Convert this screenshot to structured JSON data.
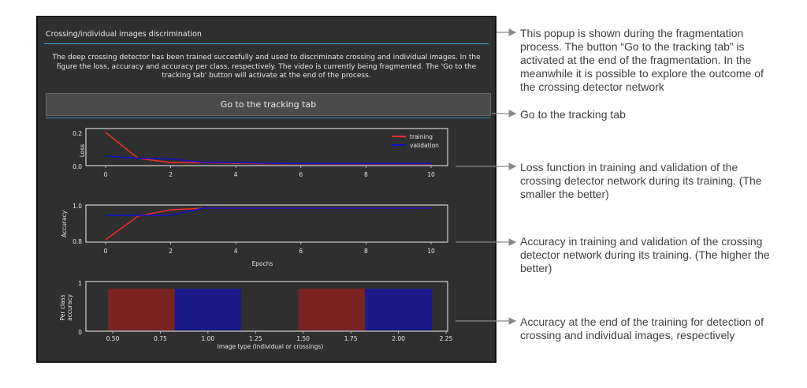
{
  "popup": {
    "title": "Crossing/individual images discrimination",
    "description": "The deep crossing detector has been trained succesfully and used to discriminate crossing and individual images. In the figure the loss, accuracy and accuracy per class, respectively. The video is currently being fragmented. The 'Go to the tracking tab' button will activate at the end of the process.",
    "button_label": "Go to the tracking tab"
  },
  "colors": {
    "training": "#e8322a",
    "validation": "#1010c8",
    "bar_training": "#7a2323",
    "bar_validation": "#1a1a8a",
    "accent": "#3ea6d8"
  },
  "chart_data": [
    {
      "type": "line",
      "ylabel": "Loss",
      "x": [
        0,
        1,
        2,
        3,
        4,
        5,
        6,
        7,
        8,
        9,
        10
      ],
      "xticks": [
        "0",
        "2",
        "4",
        "6",
        "8",
        "10"
      ],
      "yticks": [
        "0.0",
        "0.2"
      ],
      "ylim": [
        0,
        0.22
      ],
      "xlim": [
        0,
        10
      ],
      "legend": "top-right",
      "series": [
        {
          "name": "training",
          "values": [
            0.22,
            0.04,
            0.01,
            0.01,
            0.005,
            0.002,
            0.002,
            0.001,
            0.001,
            0.001,
            0.001
          ]
        },
        {
          "name": "validation",
          "values": [
            0.055,
            0.04,
            0.035,
            0.012,
            0.01,
            0.005,
            0.004,
            0.003,
            0.003,
            0.003,
            0.003
          ]
        }
      ]
    },
    {
      "type": "line",
      "ylabel": "Accuracy",
      "xlabel": "Epochs",
      "x": [
        0,
        1,
        2,
        3,
        4,
        5,
        6,
        7,
        8,
        9,
        10
      ],
      "xticks": [
        "0",
        "2",
        "4",
        "6",
        "8",
        "10"
      ],
      "yticks": [
        "0.8",
        "1.0"
      ],
      "ylim": [
        0.79,
        1.01
      ],
      "xlim": [
        0,
        10
      ],
      "series": [
        {
          "name": "training",
          "values": [
            0.8,
            0.95,
            0.99,
            1.0,
            1.0,
            1.0,
            1.0,
            1.0,
            1.0,
            1.0,
            1.0
          ]
        },
        {
          "name": "validation",
          "values": [
            0.955,
            0.955,
            0.955,
            1.0,
            1.0,
            1.0,
            1.0,
            1.0,
            1.0,
            1.0,
            1.0
          ]
        }
      ]
    },
    {
      "type": "bar",
      "ylabel": "Per class accuracy",
      "xlabel": "image type (individual or crossings)",
      "xticks": [
        "0.50",
        "0.75",
        "1.00",
        "1.25",
        "1.50",
        "1.75",
        "2.00",
        "2.25"
      ],
      "yticks": [
        "0",
        "1"
      ],
      "xlim": [
        0.45,
        2.25
      ],
      "ylim": [
        0,
        1
      ],
      "bars": [
        {
          "series": "training",
          "x": 0.65,
          "width": 0.35,
          "value": 1.0
        },
        {
          "series": "validation",
          "x": 1.0,
          "width": 0.35,
          "value": 1.0
        },
        {
          "series": "training",
          "x": 1.65,
          "width": 0.35,
          "value": 1.0
        },
        {
          "series": "validation",
          "x": 2.0,
          "width": 0.35,
          "value": 1.0
        }
      ]
    }
  ],
  "annotations": [
    {
      "text": "This popup is shown during the fragmentation process. The button “Go to the tracking tab” is activated at the end of the fragmentation. In the meanwhile it is possible to explore the outcome of the crossing detector network"
    },
    {
      "text": "Go to the tracking tab"
    },
    {
      "text": "Loss function in training and validation of the crossing detector network during its training. (The smaller the better)"
    },
    {
      "text": "Accuracy in training and validation of the crossing detector network during its training. (The higher the better)"
    },
    {
      "text": "Accuracy at the end of the training for detection of crossing and individual images, respectively"
    }
  ]
}
